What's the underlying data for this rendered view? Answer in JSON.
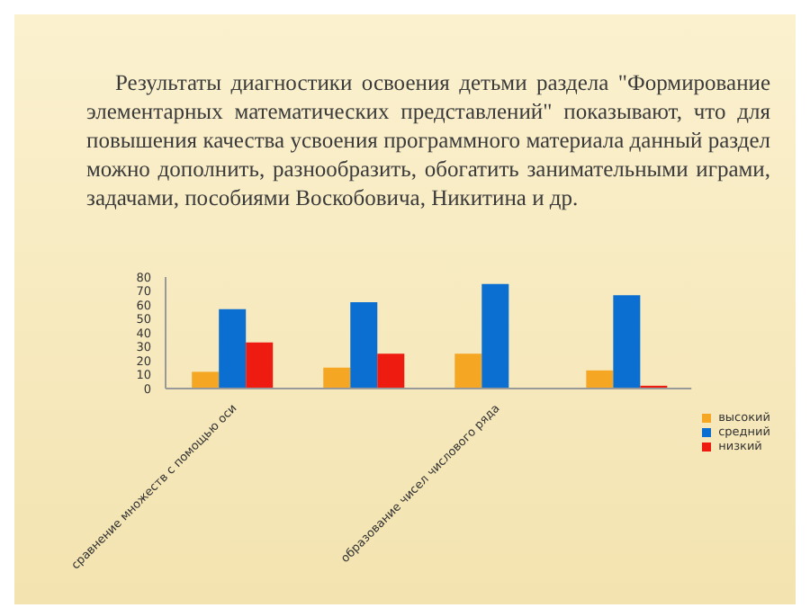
{
  "chart_data": {
    "type": "bar",
    "title": "Результаты диагностики освоения детьми раздела \"Формирование элементарных математических представлений\" показывают, что для повышения качества усвоения программного материала данный раздел можно дополнить, разнообразить, обогатить занимательными играми, задачами, пособиями Воскобовича, Никитина и др.",
    "categories": [
      "сравнение множеств с помощью оси",
      null,
      "образование чисел числового ряда",
      null
    ],
    "series": [
      {
        "name": "высокий",
        "color": "#f5a623",
        "values": [
          12,
          15,
          25,
          13
        ]
      },
      {
        "name": "средний",
        "color": "#0a6fd0",
        "values": [
          57,
          62,
          75,
          67
        ]
      },
      {
        "name": "низкий",
        "color": "#ee1c10",
        "values": [
          33,
          25,
          0,
          2
        ]
      }
    ],
    "ylim": [
      0,
      80
    ],
    "yticks": [
      0,
      10,
      20,
      30,
      40,
      50,
      60,
      70,
      80
    ],
    "legend": "right"
  }
}
